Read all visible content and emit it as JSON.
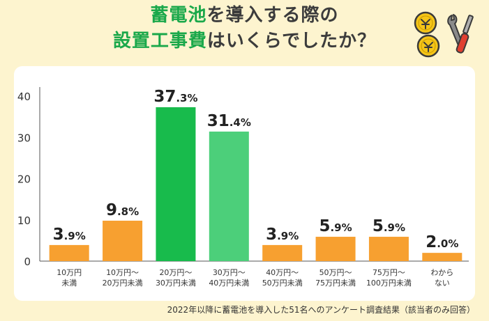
{
  "title": {
    "line1_highlight": "蓄電池",
    "line1_rest": "を導入する際の",
    "line2_highlight": "設置工事費",
    "line2_rest": "はいくらでしたか？"
  },
  "icons": [
    "coin-icon",
    "wrench-screwdriver-icon"
  ],
  "footer": "2022年以降に蓄電池を導入した51名へのアンケート調査結果（該当者のみ回答）",
  "colors": {
    "orange": "#f7a030",
    "green_dark": "#18bb4c",
    "green_light": "#4ccf7a",
    "title_green": "#1aa84a"
  },
  "chart_data": {
    "type": "bar",
    "categories": [
      [
        "10万円",
        "未満"
      ],
      [
        "10万円～",
        "20万円未満"
      ],
      [
        "20万円～",
        "30万円未満"
      ],
      [
        "30万円～",
        "40万円未満"
      ],
      [
        "40万円～",
        "50万円未満"
      ],
      [
        "50万円～",
        "75万円未満"
      ],
      [
        "75万円～",
        "100万円未満"
      ],
      [
        "わから",
        "ない"
      ]
    ],
    "values": [
      3.9,
      9.8,
      37.3,
      31.4,
      3.9,
      5.9,
      5.9,
      2.0
    ],
    "value_labels": [
      [
        "3",
        ".9%"
      ],
      [
        "9",
        ".8%"
      ],
      [
        "37",
        ".3%"
      ],
      [
        "31",
        ".4%"
      ],
      [
        "3",
        ".9%"
      ],
      [
        "5",
        ".9%"
      ],
      [
        "5",
        ".9%"
      ],
      [
        "2",
        ".0%"
      ]
    ],
    "bar_colors": [
      "#f7a030",
      "#f7a030",
      "#18bb4c",
      "#4ccf7a",
      "#f7a030",
      "#f7a030",
      "#f7a030",
      "#f7a030"
    ],
    "yticks": [
      0,
      10,
      20,
      30,
      40
    ],
    "ylim": [
      0,
      40
    ],
    "grid": false
  }
}
